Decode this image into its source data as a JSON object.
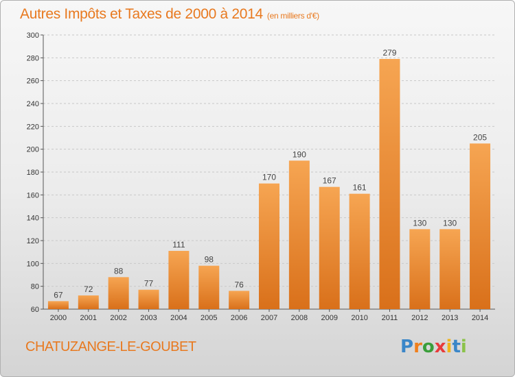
{
  "header": {
    "title": "Autres Impôts et Taxes de 2000 à 2014",
    "unit": "(en milliers d'€)"
  },
  "footer": {
    "commune": "CHATUZANGE-LE-GOUBET",
    "logo_letters": [
      "P",
      "r",
      "o",
      "x",
      "i",
      "t",
      "i"
    ]
  },
  "colors": {
    "accent": "#e8791f",
    "bar_top": "#f6a552",
    "bar_bottom": "#d9701a"
  },
  "chart_data": {
    "type": "bar",
    "title": "Autres Impôts et Taxes de 2000 à 2014",
    "subtitle": "(en milliers d'€)",
    "xlabel": "",
    "ylabel": "",
    "categories": [
      "2000",
      "2001",
      "2002",
      "2003",
      "2004",
      "2005",
      "2006",
      "2007",
      "2008",
      "2009",
      "2010",
      "2011",
      "2012",
      "2013",
      "2014"
    ],
    "values": [
      67,
      72,
      88,
      77,
      111,
      98,
      76,
      170,
      190,
      167,
      161,
      279,
      130,
      130,
      205
    ],
    "ylim": [
      60,
      300
    ],
    "yticks": [
      60,
      80,
      100,
      120,
      140,
      160,
      180,
      200,
      220,
      240,
      260,
      280,
      300
    ],
    "grid": true,
    "legend": "none"
  }
}
